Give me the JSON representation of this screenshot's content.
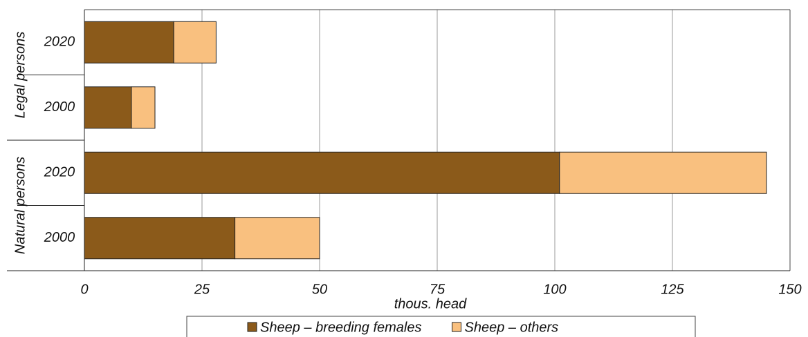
{
  "chart_data": {
    "type": "stacked_barh",
    "categories": [
      "2020",
      "2000",
      "2020",
      "2000"
    ],
    "group_labels": [
      "Legal persons",
      "Natural persons"
    ],
    "series": [
      {
        "name": "Sheep – breeding females",
        "color": "#8b5a1a",
        "values": [
          19,
          10,
          101,
          32
        ]
      },
      {
        "name": "Sheep – others",
        "color": "#f9c07f",
        "values": [
          9,
          5,
          44,
          18
        ]
      }
    ],
    "xlabel": "thous. head",
    "xlim": [
      0,
      150
    ],
    "xticks": [
      0,
      25,
      50,
      75,
      100,
      125,
      150
    ],
    "grid": true,
    "legend": "bottom"
  }
}
